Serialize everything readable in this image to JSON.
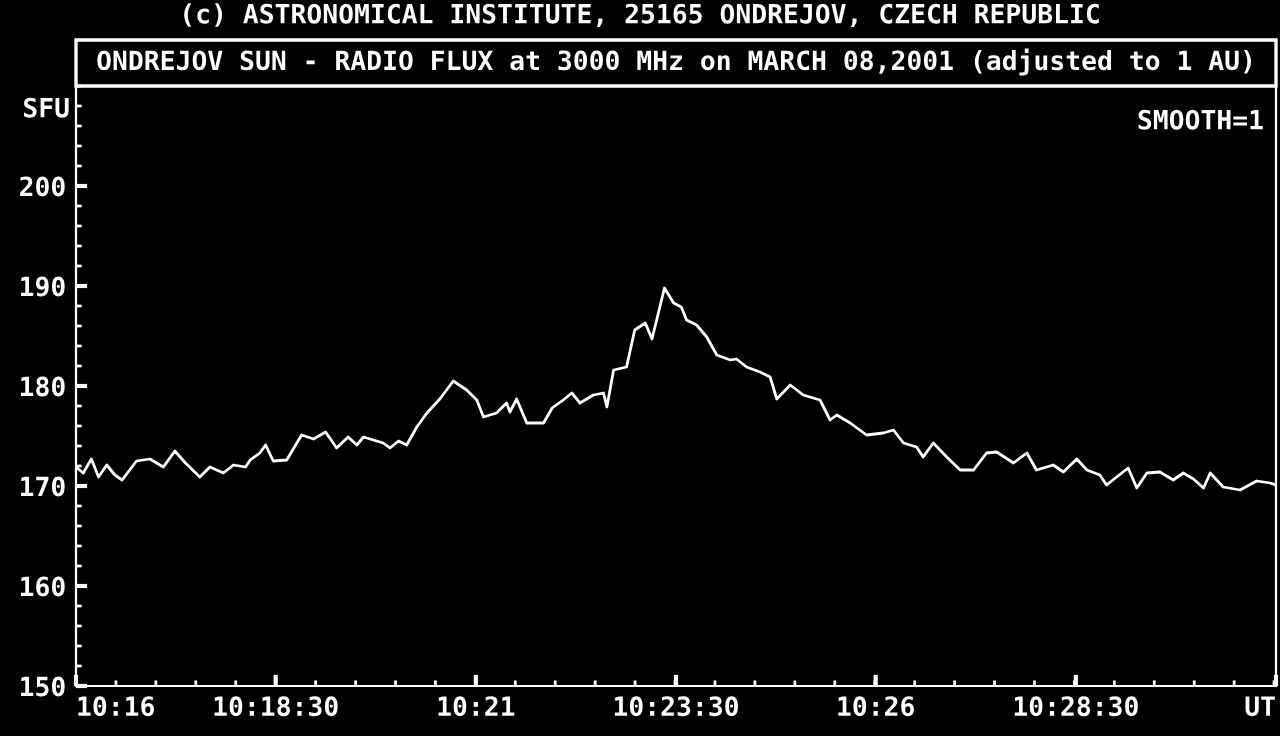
{
  "chart_data": {
    "type": "line",
    "title": "(c) ASTRONOMICAL INSTITUTE, 25165 ONDREJOV, CZECH REPUBLIC",
    "subtitle": "ONDREJOV SUN - RADIO FLUX at 3000 MHz on MARCH 08,2001 (adjusted to 1 AU)",
    "ylabel": "SFU",
    "annotations": [
      "SMOOTH=1"
    ],
    "x": [
      10.2667,
      10.2682,
      10.2699,
      10.2714,
      10.2731,
      10.2748,
      10.2763,
      10.2793,
      10.2821,
      10.2849,
      10.2873,
      10.2895,
      10.2925,
      10.2946,
      10.2974,
      10.2995,
      10.302,
      10.303,
      10.305,
      10.3062,
      10.3078,
      10.3106,
      10.3137,
      10.3162,
      10.3187,
      10.321,
      10.3234,
      10.3252,
      10.3266,
      10.3307,
      10.3321,
      10.3339,
      10.3356,
      10.3377,
      10.3398,
      10.3425,
      10.3453,
      10.3481,
      10.3502,
      10.3516,
      10.3543,
      10.3564,
      10.3571,
      10.3585,
      10.3606,
      10.3641,
      10.3659,
      10.3682,
      10.37,
      10.3717,
      10.3745,
      10.3766,
      10.3773,
      10.3787,
      10.3814,
      10.3831,
      10.3853,
      10.3867,
      10.3893,
      10.3912,
      10.3928,
      10.3939,
      10.396,
      10.3981,
      10.4002,
      10.403,
      10.4043,
      10.4064,
      10.4092,
      10.4113,
      10.4127,
      10.4155,
      10.4182,
      10.4217,
      10.4238,
      10.4252,
      10.428,
      10.4314,
      10.4349,
      10.437,
      10.4391,
      10.4418,
      10.4432,
      10.4453,
      10.4481,
      10.4509,
      10.4537,
      10.4564,
      10.4585,
      10.462,
      10.4648,
      10.4668,
      10.4703,
      10.4724,
      10.4752,
      10.4773,
      10.48,
      10.4814,
      10.4835,
      10.4859,
      10.4877,
      10.4898,
      10.4925,
      10.4953,
      10.4974,
      10.4995,
      10.5016,
      10.503,
      10.5057,
      10.5092,
      10.5127,
      10.5155,
      10.5167
    ],
    "series": [
      {
        "color": "#ffffff",
        "values": [
          171.9,
          171.3,
          172.7,
          170.9,
          172.1,
          171.1,
          170.6,
          172.5,
          172.7,
          171.9,
          173.5,
          172.3,
          170.9,
          171.9,
          171.3,
          172.1,
          171.9,
          172.6,
          173.3,
          174.1,
          172.5,
          172.6,
          175.1,
          174.7,
          175.4,
          173.8,
          174.9,
          174.1,
          174.9,
          174.3,
          173.8,
          174.5,
          174.1,
          175.9,
          177.3,
          178.7,
          180.5,
          179.6,
          178.6,
          176.9,
          177.3,
          178.3,
          177.4,
          178.7,
          176.3,
          176.3,
          177.8,
          178.6,
          179.3,
          178.3,
          179.1,
          179.3,
          177.9,
          181.6,
          181.9,
          185.6,
          186.3,
          184.7,
          189.8,
          188.3,
          187.9,
          186.6,
          186.1,
          184.9,
          183.1,
          182.6,
          182.7,
          181.9,
          181.4,
          180.9,
          178.7,
          180.1,
          179.1,
          178.6,
          176.6,
          177.1,
          176.3,
          175.1,
          175.3,
          175.6,
          174.3,
          173.9,
          172.9,
          174.3,
          172.9,
          171.6,
          171.6,
          173.3,
          173.4,
          172.3,
          173.3,
          171.6,
          172.1,
          171.4,
          172.7,
          171.6,
          171.1,
          170.1,
          170.9,
          171.8,
          169.8,
          171.3,
          171.4,
          170.6,
          171.3,
          170.7,
          169.8,
          171.3,
          169.9,
          169.6,
          170.5,
          170.3,
          170.1
        ]
      }
    ],
    "xlim": [
      10.2667,
      10.5167
    ],
    "xticks": [
      {
        "value": 10.2667,
        "label": "10:16"
      },
      {
        "value": 10.3083,
        "label": "10:18:30"
      },
      {
        "value": 10.35,
        "label": "10:21"
      },
      {
        "value": 10.3917,
        "label": "10:23:30"
      },
      {
        "value": 10.4333,
        "label": "10:26"
      },
      {
        "value": 10.475,
        "label": "10:28:30"
      },
      {
        "value": 10.5167,
        "label": "UT"
      }
    ],
    "ylim": [
      150,
      210
    ],
    "yticks": [
      150,
      160,
      170,
      180,
      190,
      200
    ],
    "grid": false,
    "legend": false,
    "marker": "none",
    "line_style": "solid"
  }
}
